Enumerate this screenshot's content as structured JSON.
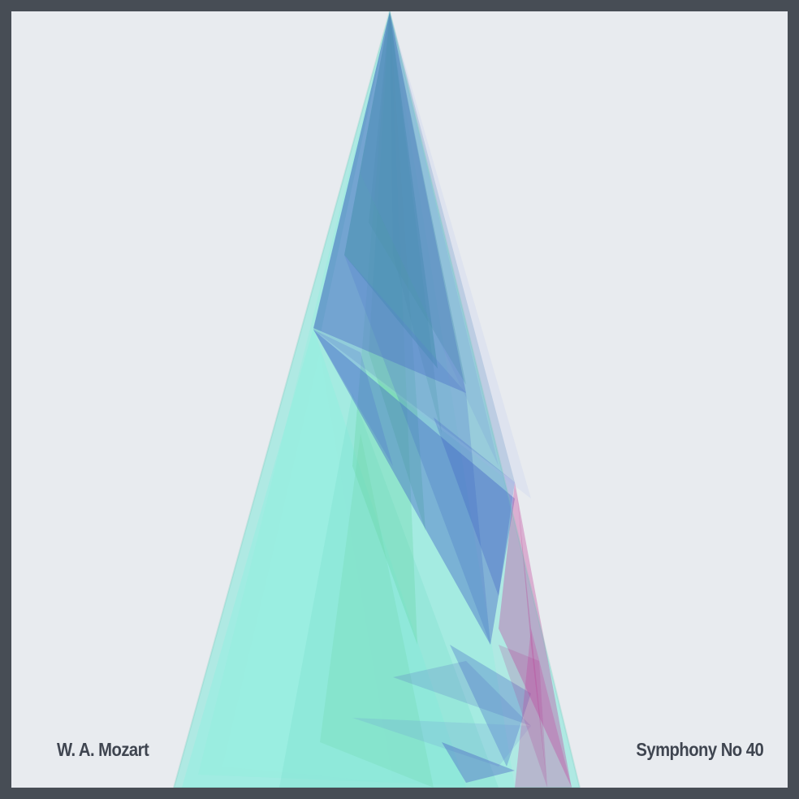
{
  "composer": "W. A. Mozart",
  "work": "Symphony No 40",
  "colors": {
    "border": "#474d55",
    "background": "#e8ebef",
    "text": "#3f4550",
    "teal": "#7fe8d8",
    "green": "#5fd39a",
    "blue": "#3b5cc4",
    "steel": "#4a86b8",
    "magenta": "#c0409a"
  }
}
